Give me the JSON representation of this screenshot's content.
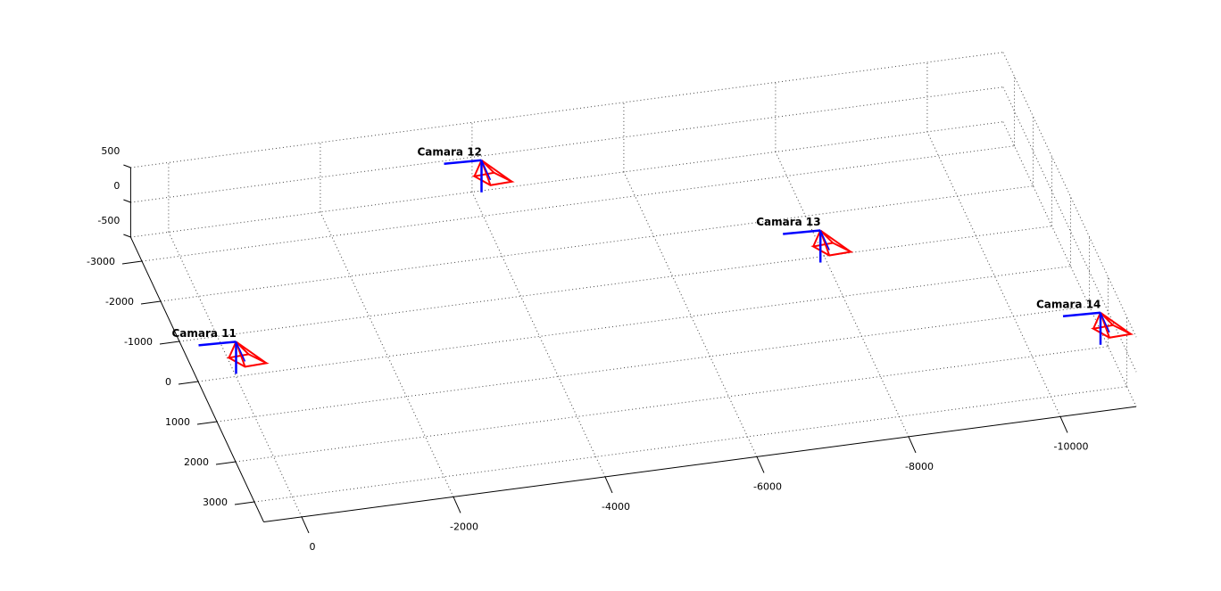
{
  "chart_data": {
    "type": "camera3d",
    "xlim": [
      500,
      -11000
    ],
    "ylim": [
      -3600,
      3500
    ],
    "zlim": [
      -500,
      500
    ],
    "xticks": [
      0,
      -2000,
      -4000,
      -6000,
      -8000,
      -10000
    ],
    "yticks": [
      -3000,
      -2000,
      -1000,
      0,
      1000,
      2000,
      3000
    ],
    "zticks": [
      500,
      0,
      -500
    ],
    "grid": true,
    "points": {
      "labels": [
        "Camara 11",
        "Camara 12",
        "Camara 13",
        "Camara 14"
      ],
      "x": [
        0,
        -4100,
        -7900,
        -10900
      ],
      "y": [
        0,
        -3500,
        -800,
        2000
      ],
      "z": [
        0,
        0,
        0,
        0
      ],
      "color": "#ff0000",
      "axis_color": "#0000ff"
    }
  }
}
